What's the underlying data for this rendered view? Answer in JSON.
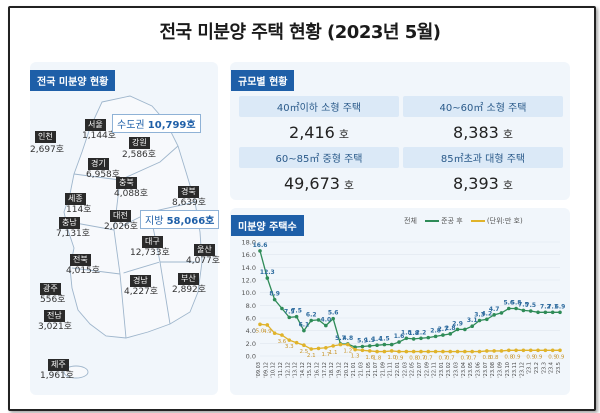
{
  "title": "전국 미분양 주택 현황  (2023년 5월)",
  "left_panel": {
    "tag": "전국 미분양 현황",
    "capital": {
      "label": "수도권",
      "value": "10,799호"
    },
    "local": {
      "label": "지방",
      "value": "58,066호"
    },
    "regions": [
      {
        "name": "인천",
        "value": "2,697호"
      },
      {
        "name": "서울",
        "value": "1,144호"
      },
      {
        "name": "강원",
        "value": "2,586호"
      },
      {
        "name": "경기",
        "value": "6,958호"
      },
      {
        "name": "충북",
        "value": "4,088호"
      },
      {
        "name": "경북",
        "value": "8,639호"
      },
      {
        "name": "세종",
        "value": "114호"
      },
      {
        "name": "충남",
        "value": "7,131호"
      },
      {
        "name": "대전",
        "value": "2,026호"
      },
      {
        "name": "대구",
        "value": "12,733호"
      },
      {
        "name": "울산",
        "value": "4,077호"
      },
      {
        "name": "전북",
        "value": "4,015호"
      },
      {
        "name": "경남",
        "value": "4,227호"
      },
      {
        "name": "부산",
        "value": "2,892호"
      },
      {
        "name": "광주",
        "value": "556호"
      },
      {
        "name": "전남",
        "value": "3,021호"
      },
      {
        "name": "제주",
        "value": "1,961호"
      }
    ]
  },
  "scale_panel": {
    "tag": "규모별 현황",
    "cells": [
      {
        "label": "40㎡이하 소형 주택",
        "value": "2,416",
        "unit": "호"
      },
      {
        "label": "40~60㎡ 소형 주택",
        "value": "8,383",
        "unit": "호"
      },
      {
        "label": "60~85㎡ 중형 주택",
        "value": "49,673",
        "unit": "호"
      },
      {
        "label": "85㎡초과 대형 주택",
        "value": "8,393",
        "unit": "호"
      }
    ]
  },
  "chart_panel": {
    "tag": "미분양 주택수",
    "legend_total": "전체",
    "legend_completed": "준공 후",
    "unit_note": "(단위:만 호)"
  },
  "colors": {
    "total": "#2e8b57",
    "completed": "#e0b32a",
    "accent": "#1e5fa8"
  },
  "chart_data": {
    "type": "line",
    "x": [
      "'09.03",
      "'09.12",
      "'10.12",
      "'11.12",
      "'12.12",
      "'13.12",
      "'14.12",
      "'15.12",
      "'16.12",
      "'17.12",
      "'18.12",
      "'19.12",
      "'20.12",
      "'21.01",
      "'21.03",
      "'21.05",
      "'21.07",
      "'21.09",
      "'21.11",
      "'22.01",
      "'22.03",
      "'22.05",
      "'22.07",
      "'22.09",
      "'22.11",
      "'23.01",
      "'23.02",
      "'23.03",
      "'23.04",
      "'23.05",
      "'23.06",
      "'23.07",
      "'23.08",
      "'23.09",
      "'23.10",
      "'23.11",
      "'23.12",
      "'23.1",
      "'23.2",
      "'23.3",
      "'23.4",
      "'23.5"
    ],
    "series": [
      {
        "name": "전체",
        "values": [
          16.6,
          12.3,
          8.9,
          7.5,
          6.1,
          6.2,
          4.0,
          5.6,
          5.7,
          4.8,
          5.9,
          1.9,
          1.9,
          1.4,
          1.5,
          1.6,
          1.7,
          1.8,
          1.8,
          2.2,
          2.8,
          2.7,
          2.8,
          2.9,
          3.1,
          3.3,
          3.5,
          4.2,
          4.2,
          4.7,
          5.6,
          5.8,
          6.5,
          6.8,
          7.5,
          7.5,
          7.2,
          7.1,
          6.9,
          6.9,
          6.9,
          6.9
        ]
      },
      {
        "name": "준공 후",
        "values": [
          5.0,
          4.9,
          3.6,
          3.3,
          2.5,
          2.1,
          1.7,
          1.1,
          1.2,
          1.3,
          1.6,
          1.8,
          1.8,
          1.0,
          0.9,
          0.8,
          0.7,
          0.7,
          0.8,
          0.7,
          0.7,
          0.7,
          0.7,
          0.7,
          0.7,
          0.7,
          0.7,
          0.7,
          0.7,
          0.7,
          0.7,
          0.8,
          0.8,
          0.8,
          0.9,
          0.9,
          0.9,
          0.9,
          0.9,
          0.9,
          0.9,
          0.9
        ]
      }
    ],
    "point_labels_total": [
      "16.6",
      "12.3",
      "8.9",
      "7.5",
      "7.5",
      "6.1",
      "6.2",
      "4.0",
      "5.6",
      "5.7",
      "4.8",
      "5.9",
      "1.9",
      "1.4",
      "1.5",
      "1.6",
      "1.8",
      "1.8",
      "2.2",
      "2.8",
      "2.7",
      "2.8",
      "2.9",
      "3.1",
      "3.3",
      "4.2",
      "4.7",
      "5.6",
      "5.8",
      "7.5",
      "7.5",
      "7.2",
      "7.1",
      "6.9"
    ],
    "point_labels_completed": [
      "5.0",
      "4.9",
      "3.6",
      "3.3",
      "2.5",
      "2.1",
      "1.7",
      "1.1",
      "1.2",
      "1.3",
      "1.6",
      "1.8",
      "1.0",
      "0.9",
      "0.8",
      "0.7",
      "0.7",
      "0.7",
      "0.7",
      "0.7",
      "0.7",
      "0.8",
      "0.8",
      "0.8",
      "0.9",
      "0.9",
      "0.9",
      "0.9",
      "0.9"
    ],
    "ylim": [
      0,
      18
    ],
    "yticks": [
      "0.0",
      "2.0",
      "4.0",
      "6.0",
      "8.0",
      "10.0",
      "12.0",
      "14.0",
      "16.0",
      "18.0"
    ]
  }
}
